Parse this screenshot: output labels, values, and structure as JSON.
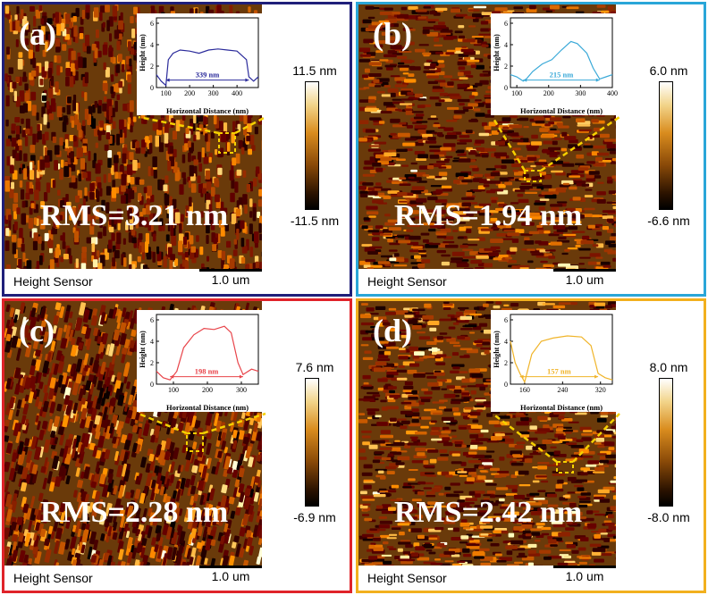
{
  "panels": [
    {
      "id": "a",
      "label": "(a)",
      "border_color": "#1f1f7a",
      "rms": "RMS=3.21 nm",
      "scale_max": "11.5 nm",
      "scale_min": "-11.5 nm",
      "caption": "Height Sensor",
      "scalebar": "1.0 um",
      "inset": {
        "color": "#2b2b9b",
        "ylabel": "Height (nm)",
        "xlabel": "Horizontal Distance (nm)",
        "yticks": [
          "0",
          "2",
          "4",
          "6"
        ],
        "xticks": [
          "100",
          "200",
          "300",
          "400"
        ],
        "width_label": "339 nm",
        "profile": [
          [
            60,
            1.2
          ],
          [
            80,
            0.6
          ],
          [
            100,
            0.2
          ],
          [
            110,
            2.6
          ],
          [
            130,
            3.2
          ],
          [
            160,
            3.5
          ],
          [
            200,
            3.4
          ],
          [
            240,
            3.2
          ],
          [
            280,
            3.5
          ],
          [
            320,
            3.6
          ],
          [
            360,
            3.5
          ],
          [
            400,
            3.4
          ],
          [
            440,
            2.6
          ],
          [
            450,
            1.0
          ],
          [
            470,
            0.6
          ],
          [
            490,
            1.0
          ]
        ],
        "xlim": [
          60,
          490
        ],
        "ylim": [
          0,
          6.5
        ]
      },
      "grain": "vertical"
    },
    {
      "id": "b",
      "label": "(b)",
      "border_color": "#2aa6d8",
      "rms": "RMS=1.94 nm",
      "scale_max": "6.0 nm",
      "scale_min": "-6.6 nm",
      "caption": "Height Sensor",
      "scalebar": "1.0 um",
      "inset": {
        "color": "#3aa9d8",
        "ylabel": "Height (nm)",
        "xlabel": "Horizontal Distance (nm)",
        "yticks": [
          "0",
          "2",
          "4",
          "6"
        ],
        "xticks": [
          "100",
          "200",
          "300",
          "400"
        ],
        "width_label": "215 nm",
        "profile": [
          [
            80,
            1.2
          ],
          [
            100,
            1.0
          ],
          [
            120,
            0.6
          ],
          [
            130,
            0.8
          ],
          [
            150,
            1.5
          ],
          [
            180,
            2.2
          ],
          [
            210,
            2.6
          ],
          [
            240,
            3.5
          ],
          [
            270,
            4.3
          ],
          [
            290,
            4.1
          ],
          [
            320,
            3.2
          ],
          [
            340,
            1.8
          ],
          [
            360,
            0.8
          ],
          [
            380,
            1.0
          ],
          [
            400,
            1.2
          ]
        ],
        "xlim": [
          80,
          400
        ],
        "ylim": [
          0,
          6.5
        ]
      },
      "grain": "horizontal"
    },
    {
      "id": "c",
      "label": "(c)",
      "border_color": "#e0232a",
      "rms": "RMS=2.28 nm",
      "scale_max": "7.6 nm",
      "scale_min": "-6.9 nm",
      "caption": "Height Sensor",
      "scalebar": "1.0 um",
      "inset": {
        "color": "#e8444a",
        "ylabel": "Height (nm)",
        "xlabel": "Horizontal Distance (nm)",
        "yticks": [
          "0",
          "2",
          "4",
          "6"
        ],
        "xticks": [
          "100",
          "200",
          "300"
        ],
        "width_label": "198 nm",
        "profile": [
          [
            50,
            1.2
          ],
          [
            70,
            0.6
          ],
          [
            90,
            0.4
          ],
          [
            110,
            1.2
          ],
          [
            130,
            3.4
          ],
          [
            160,
            4.6
          ],
          [
            190,
            5.2
          ],
          [
            220,
            5.1
          ],
          [
            250,
            5.4
          ],
          [
            270,
            4.8
          ],
          [
            290,
            2.0
          ],
          [
            305,
            0.9
          ],
          [
            330,
            1.4
          ],
          [
            350,
            1.2
          ]
        ],
        "xlim": [
          50,
          350
        ],
        "ylim": [
          0,
          6.5
        ]
      },
      "grain": "diagonal"
    },
    {
      "id": "d",
      "label": "(d)",
      "border_color": "#f2b01e",
      "rms": "RMS=2.42 nm",
      "scale_max": "8.0 nm",
      "scale_min": "-8.0 nm",
      "caption": "Height Sensor",
      "scalebar": "1.0 um",
      "inset": {
        "color": "#f0b429",
        "ylabel": "Height (nm)",
        "xlabel": "Horizontal Distance (nm)",
        "yticks": [
          "0",
          "2",
          "4",
          "6"
        ],
        "xticks": [
          "160",
          "240",
          "320"
        ],
        "width_label": "157 nm",
        "profile": [
          [
            130,
            4.0
          ],
          [
            140,
            2.0
          ],
          [
            150,
            1.0
          ],
          [
            160,
            0.2
          ],
          [
            175,
            2.8
          ],
          [
            195,
            4.0
          ],
          [
            220,
            4.3
          ],
          [
            250,
            4.5
          ],
          [
            280,
            4.4
          ],
          [
            300,
            3.6
          ],
          [
            315,
            1.0
          ],
          [
            330,
            0.6
          ],
          [
            345,
            0.4
          ]
        ],
        "xlim": [
          130,
          345
        ],
        "ylim": [
          0,
          6.5
        ]
      },
      "grain": "horizontal"
    }
  ]
}
